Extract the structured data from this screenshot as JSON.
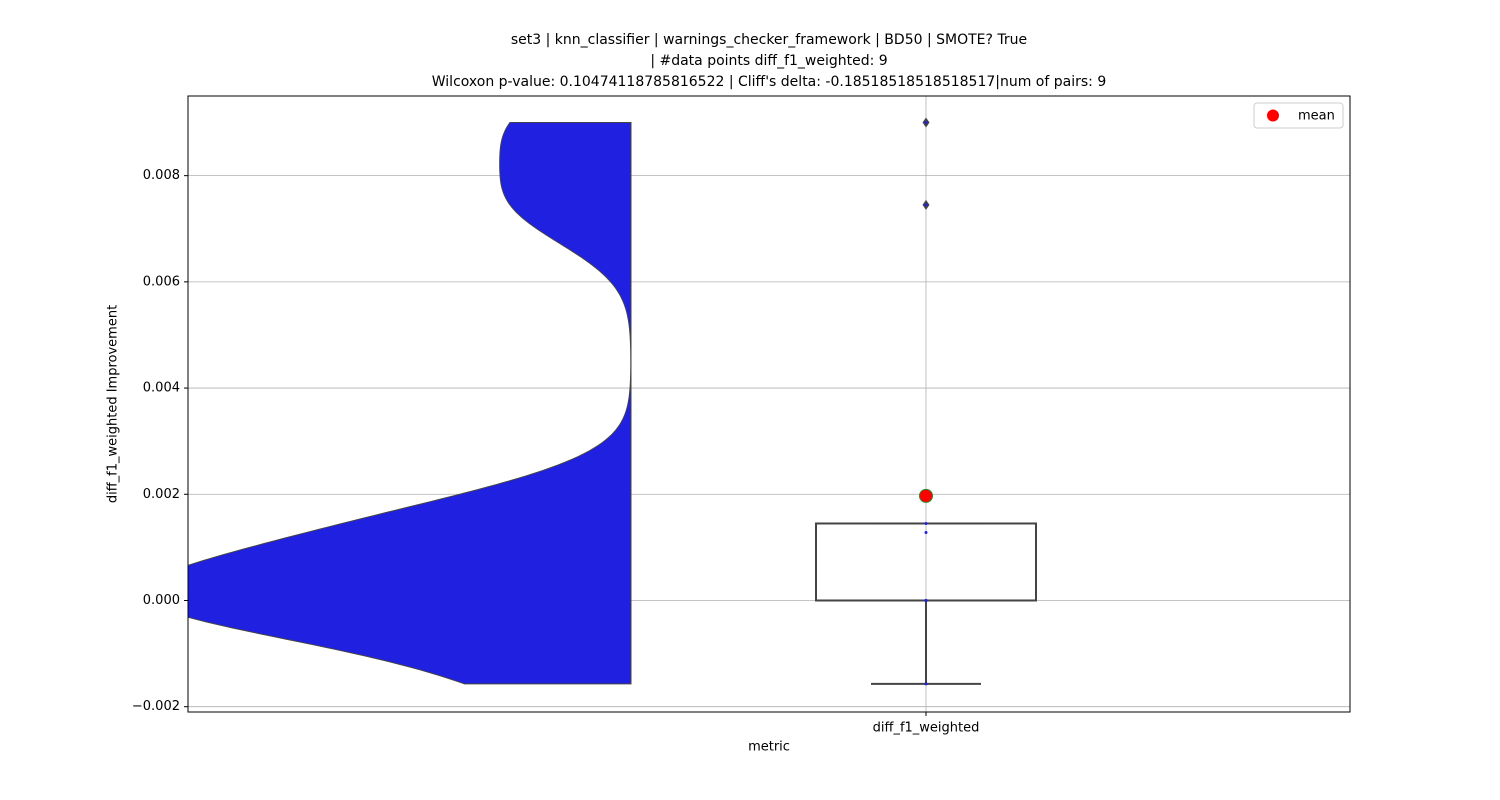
{
  "chart_data": {
    "type": "violin_box",
    "title_lines": [
      "set3 | knn_classifier | warnings_checker_framework | BD50 | SMOTE? True",
      "| #data points diff_f1_weighted: 9",
      "Wilcoxon p-value: 0.10474118785816522 | Cliff's delta: -0.18518518518518517|num of pairs: 9"
    ],
    "x_label": "metric",
    "y_label": "diff_f1_weighted Improvement",
    "categories": [
      "diff_f1_weighted"
    ],
    "values": [
      0.009,
      0.00745,
      0.00145,
      0.00128,
      0,
      0,
      0,
      0,
      -0.00157
    ],
    "box": {
      "q1": 0,
      "median": 0,
      "q3": 0.00145,
      "whisker_low": -0.00157,
      "whisker_high": 0.00145,
      "outliers": [
        0.009,
        0.00745
      ]
    },
    "mean": 0.00197,
    "mean_label": "mean",
    "violin_color": "#2020e0",
    "point_color": "#2020e0",
    "mean_color": "#ff0000",
    "box_color": "#444444",
    "ylim": [
      -0.0021,
      0.0095
    ],
    "yticks": [
      {
        "value": -0.002,
        "label": "−0.002"
      },
      {
        "value": 0,
        "label": "0.000"
      },
      {
        "value": 0.002,
        "label": "0.002"
      },
      {
        "value": 0.004,
        "label": "0.004"
      },
      {
        "value": 0.006,
        "label": "0.006"
      },
      {
        "value": 0.008,
        "label": "0.008"
      }
    ],
    "grid": true,
    "legend_loc": "upper right"
  }
}
